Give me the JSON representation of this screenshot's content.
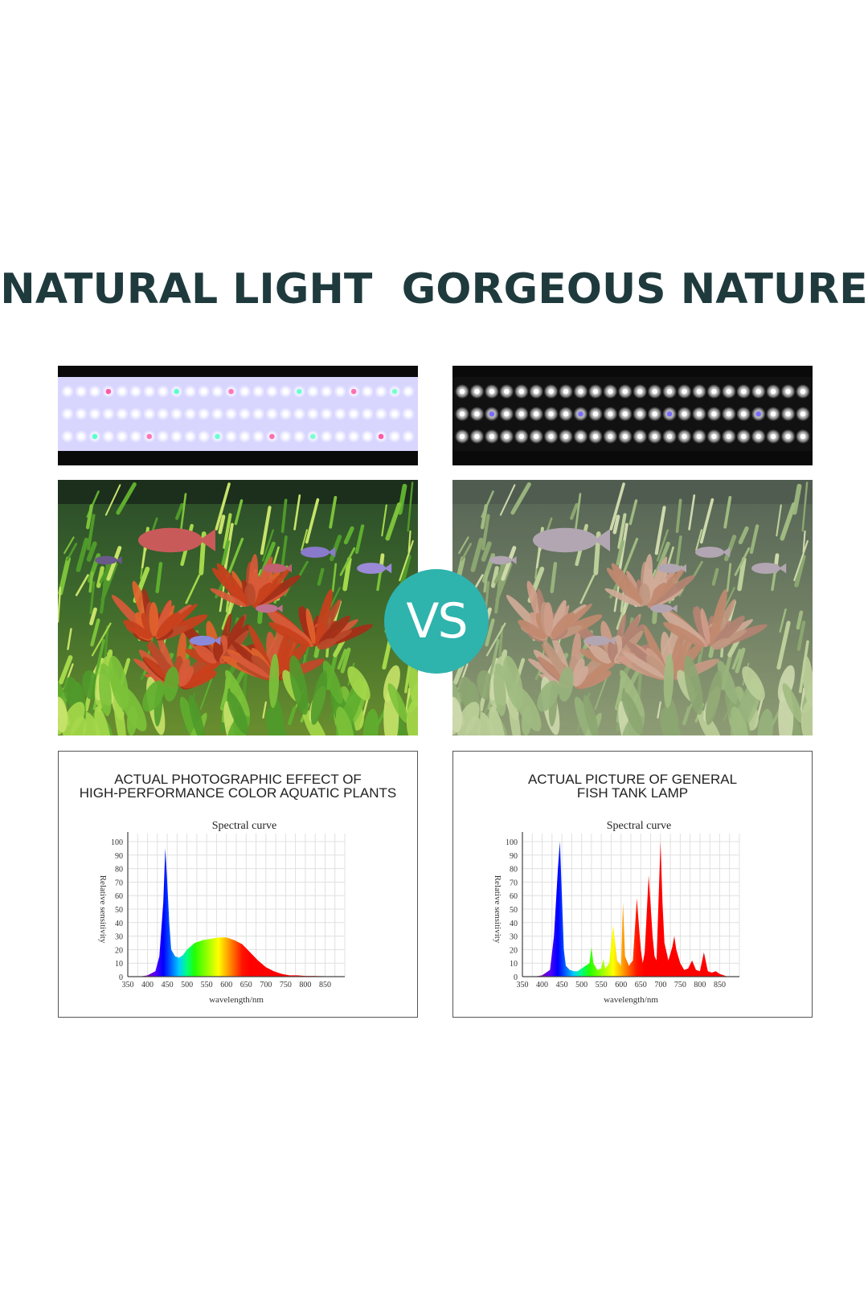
{
  "headline": "NATURAL LIGHT  GORGEOUS NATURE",
  "vs_label": "VS",
  "colors": {
    "accent": "#2fb3ad",
    "headline": "#1f3a3d"
  },
  "left_panel": {
    "led_bar": "led-strip-multicolor",
    "photo": "aquarium-photo-vivid",
    "chart": {
      "title_line1": "ACTUAL PHOTOGRAPHIC EFFECT OF",
      "title_line2": "HIGH-PERFORMANCE COLOR AQUATIC PLANTS"
    }
  },
  "right_panel": {
    "led_bar": "led-strip-white",
    "photo": "aquarium-photo-dull",
    "chart": {
      "title_line1": "ACTUAL PICTURE OF GENERAL",
      "title_line2": "FISH TANK LAMP"
    }
  },
  "chart_data": [
    {
      "type": "area",
      "title": "Spectral curve",
      "xlabel": "wavelength/nm",
      "ylabel": "Relative sensitivity",
      "xlim": [
        350,
        900
      ],
      "ylim": [
        0,
        100
      ],
      "x_ticks": [
        "350",
        "400",
        "450",
        "500",
        "550",
        "600",
        "650",
        "700",
        "750",
        "800",
        "850"
      ],
      "y_ticks": [
        "0",
        "10",
        "20",
        "30",
        "40",
        "50",
        "60",
        "70",
        "80",
        "90",
        "100"
      ],
      "x": [
        380,
        400,
        420,
        430,
        440,
        445,
        450,
        455,
        460,
        470,
        480,
        490,
        500,
        520,
        540,
        560,
        580,
        600,
        620,
        640,
        660,
        680,
        700,
        720,
        740,
        760,
        780,
        800,
        820,
        850,
        880
      ],
      "values": [
        0,
        1,
        4,
        15,
        55,
        95,
        70,
        40,
        20,
        15,
        14,
        16,
        20,
        25,
        27,
        28,
        29,
        29,
        27,
        24,
        18,
        12,
        7,
        4,
        2,
        1,
        1,
        0.5,
        0.5,
        0.3,
        0
      ],
      "grid": true
    },
    {
      "type": "area",
      "title": "Spectral curve",
      "xlabel": "wavelength/nm",
      "ylabel": "Relative sensitivity",
      "xlim": [
        350,
        900
      ],
      "ylim": [
        0,
        100
      ],
      "x_ticks": [
        "350",
        "400",
        "450",
        "500",
        "550",
        "600",
        "650",
        "700",
        "750",
        "800",
        "850"
      ],
      "y_ticks": [
        "0",
        "10",
        "20",
        "30",
        "40",
        "50",
        "60",
        "70",
        "80",
        "90",
        "100"
      ],
      "x": [
        380,
        400,
        420,
        430,
        440,
        445,
        450,
        455,
        460,
        470,
        480,
        490,
        500,
        510,
        520,
        525,
        530,
        540,
        550,
        555,
        560,
        570,
        580,
        590,
        600,
        605,
        610,
        620,
        630,
        640,
        650,
        655,
        660,
        670,
        680,
        685,
        690,
        700,
        705,
        710,
        720,
        730,
        735,
        740,
        750,
        760,
        770,
        780,
        790,
        800,
        810,
        820,
        830,
        840,
        850,
        870
      ],
      "values": [
        0,
        1,
        5,
        30,
        80,
        100,
        60,
        20,
        8,
        5,
        4,
        4,
        6,
        8,
        10,
        22,
        10,
        5,
        6,
        13,
        6,
        10,
        38,
        12,
        8,
        55,
        15,
        8,
        12,
        58,
        20,
        10,
        18,
        75,
        30,
        15,
        12,
        100,
        55,
        25,
        12,
        22,
        30,
        20,
        10,
        5,
        6,
        12,
        5,
        4,
        18,
        4,
        3,
        4,
        2,
        0
      ],
      "grid": true
    }
  ]
}
